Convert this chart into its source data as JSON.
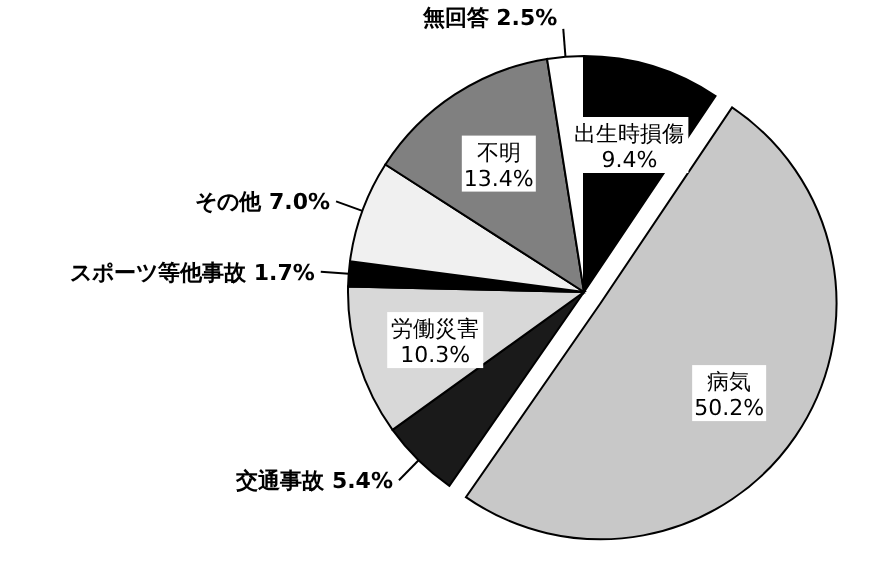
{
  "chart_data": {
    "type": "pie",
    "categories": [
      "出生時損傷",
      "病気",
      "交通事故",
      "労働災害",
      "スポーツ等他事故",
      "その他",
      "不明",
      "無回答"
    ],
    "values": [
      9.4,
      50.2,
      5.4,
      10.3,
      1.7,
      7.0,
      13.4,
      2.5
    ],
    "value_labels": [
      "9.4%",
      "50.2%",
      "5.4%",
      "10.3%",
      "1.7%",
      "7.0%",
      "13.4%",
      "2.5%"
    ],
    "colors": [
      "#000000",
      "#c8c8c8",
      "#1a1a1a",
      "#d8d8d8",
      "#000000",
      "#f0f0f0",
      "#808080",
      "#ffffff"
    ],
    "legend": false
  }
}
